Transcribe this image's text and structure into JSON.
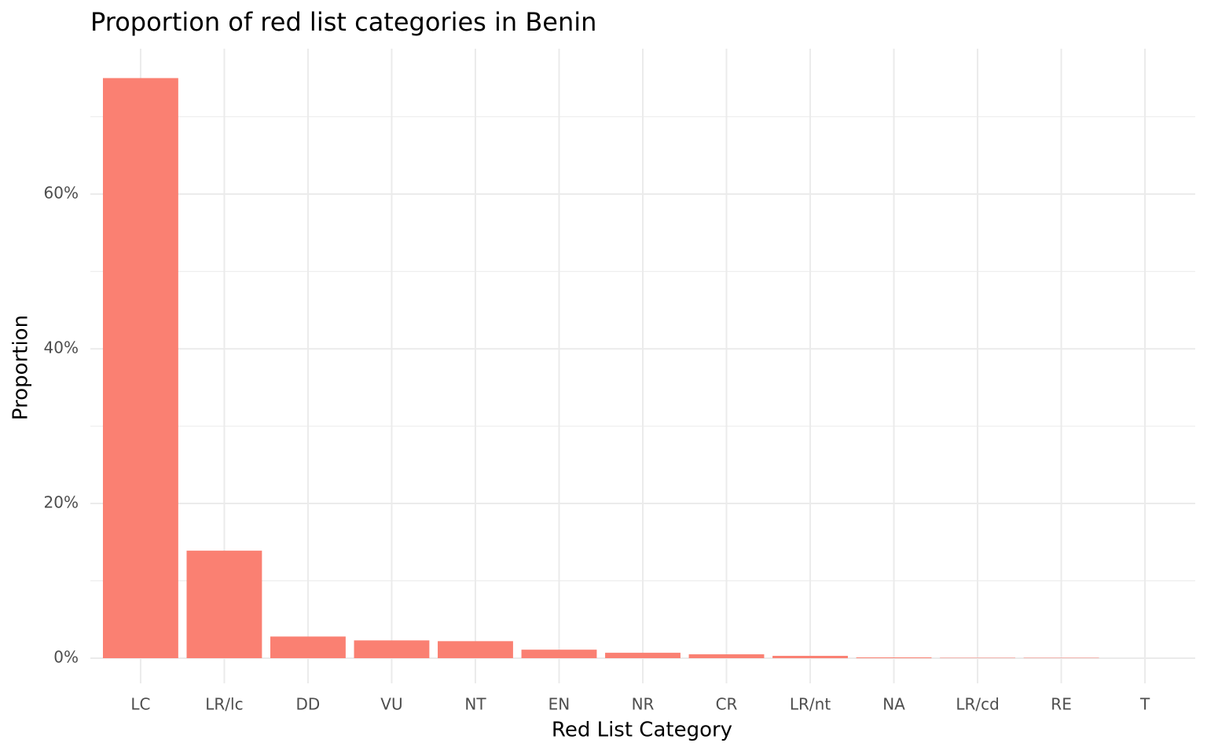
{
  "chart_data": {
    "type": "bar",
    "title": "Proportion of red list categories in Benin",
    "x_label": "Red List Category",
    "y_label": "Proportion",
    "categories": [
      "LC",
      "LR/lc",
      "DD",
      "VU",
      "NT",
      "EN",
      "NR",
      "CR",
      "LR/nt",
      "NA",
      "LR/cd",
      "RE",
      "T"
    ],
    "values": [
      75.0,
      13.9,
      2.8,
      2.3,
      2.2,
      1.1,
      0.7,
      0.5,
      0.3,
      0.1,
      0.05,
      0.05,
      0
    ],
    "color": "#fa8072",
    "ylim": [
      -3.25,
      78.8
    ],
    "yticks": [
      {
        "value": 0,
        "label": "0%"
      },
      {
        "value": 20,
        "label": "20%"
      },
      {
        "value": 40,
        "label": "40%"
      },
      {
        "value": 60,
        "label": "60%"
      }
    ],
    "minor_yticks": [
      10,
      30,
      50,
      70
    ],
    "grid": true
  }
}
